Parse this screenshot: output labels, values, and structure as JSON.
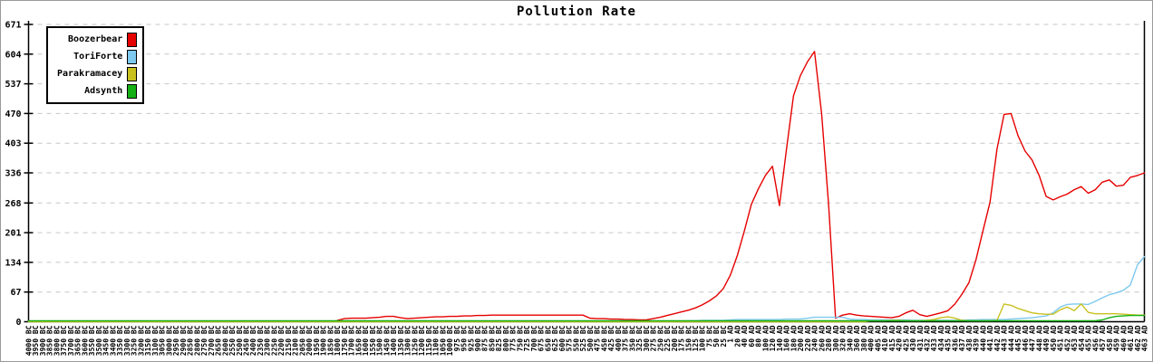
{
  "chart_data": {
    "type": "line",
    "title": "Pollution Rate",
    "xlabel": "",
    "ylabel": "",
    "ylim": [
      0,
      671
    ],
    "y_ticks": [
      0,
      67,
      134,
      201,
      268,
      336,
      403,
      470,
      537,
      604,
      671
    ],
    "grid": "horizontal-dashed",
    "legend_position": "top-left",
    "axis_color": "#000000",
    "grid_color": "#c6c6c6",
    "x_tick_labels": [
      "4000 BC",
      "3950 BC",
      "3900 BC",
      "3850 BC",
      "3800 BC",
      "3750 BC",
      "3700 BC",
      "3650 BC",
      "3600 BC",
      "3550 BC",
      "3500 BC",
      "3450 BC",
      "3400 BC",
      "3350 BC",
      "3300 BC",
      "3250 BC",
      "3200 BC",
      "3150 BC",
      "3100 BC",
      "3050 BC",
      "3000 BC",
      "2950 BC",
      "2900 BC",
      "2850 BC",
      "2800 BC",
      "2750 BC",
      "2700 BC",
      "2650 BC",
      "2600 BC",
      "2550 BC",
      "2500 BC",
      "2450 BC",
      "2400 BC",
      "2350 BC",
      "2300 BC",
      "2250 BC",
      "2200 BC",
      "2150 BC",
      "2100 BC",
      "2050 BC",
      "2000 BC",
      "1950 BC",
      "1900 BC",
      "1850 BC",
      "1800 BC",
      "1750 BC",
      "1700 BC",
      "1650 BC",
      "1600 BC",
      "1550 BC",
      "1500 BC",
      "1450 BC",
      "1400 BC",
      "1350 BC",
      "1300 BC",
      "1250 BC",
      "1200 BC",
      "1150 BC",
      "1100 BC",
      "1050 BC",
      "1000 BC",
      "975 BC",
      "950 BC",
      "925 BC",
      "900 BC",
      "875 BC",
      "850 BC",
      "825 BC",
      "800 BC",
      "775 BC",
      "750 BC",
      "725 BC",
      "700 BC",
      "675 BC",
      "650 BC",
      "625 BC",
      "600 BC",
      "575 BC",
      "550 BC",
      "525 BC",
      "500 BC",
      "475 BC",
      "450 BC",
      "425 BC",
      "400 BC",
      "375 BC",
      "350 BC",
      "325 BC",
      "300 BC",
      "275 BC",
      "250 BC",
      "225 BC",
      "200 BC",
      "175 BC",
      "150 BC",
      "125 BC",
      "100 BC",
      "75 BC",
      "50 BC",
      "25 BC",
      "1 AD",
      "20 AD",
      "40 AD",
      "60 AD",
      "80 AD",
      "100 AD",
      "120 AD",
      "140 AD",
      "160 AD",
      "180 AD",
      "200 AD",
      "220 AD",
      "240 AD",
      "260 AD",
      "280 AD",
      "300 AD",
      "320 AD",
      "340 AD",
      "360 AD",
      "380 AD",
      "400 AD",
      "405 AD",
      "410 AD",
      "415 AD",
      "420 AD",
      "425 AD",
      "430 AD",
      "431 AD",
      "432 AD",
      "433 AD",
      "434 AD",
      "435 AD",
      "436 AD",
      "437 AD",
      "438 AD",
      "439 AD",
      "440 AD",
      "441 AD",
      "442 AD",
      "443 AD",
      "444 AD",
      "445 AD",
      "446 AD",
      "447 AD",
      "448 AD",
      "449 AD",
      "450 AD",
      "451 AD",
      "452 AD",
      "453 AD",
      "454 AD",
      "455 AD",
      "456 AD",
      "457 AD",
      "458 AD",
      "459 AD",
      "460 AD",
      "461 AD",
      "462 AD",
      "463 AD"
    ],
    "series": [
      {
        "name": "Boozerbear",
        "color": "#e60000",
        "values": [
          null,
          null,
          null,
          null,
          null,
          null,
          null,
          null,
          null,
          null,
          null,
          null,
          null,
          null,
          null,
          null,
          null,
          null,
          null,
          null,
          null,
          null,
          null,
          null,
          null,
          null,
          null,
          null,
          null,
          null,
          null,
          null,
          null,
          null,
          null,
          null,
          null,
          null,
          null,
          null,
          null,
          null,
          null,
          null,
          3,
          7,
          8,
          8,
          8,
          9,
          10,
          12,
          12,
          9,
          7,
          8,
          9,
          10,
          11,
          11,
          12,
          12,
          13,
          13,
          14,
          14,
          15,
          15,
          15,
          15,
          15,
          15,
          15,
          15,
          15,
          15,
          15,
          15,
          15,
          15,
          8,
          7,
          7,
          6,
          6,
          5,
          5,
          4,
          4,
          7,
          10,
          14,
          18,
          22,
          26,
          31,
          38,
          47,
          58,
          75,
          105,
          150,
          205,
          265,
          300,
          330,
          351,
          262,
          390,
          510,
          556,
          587,
          610,
          470,
          265,
          8,
          15,
          18,
          15,
          13,
          12,
          11,
          10,
          9,
          12,
          20,
          26,
          16,
          12,
          16,
          20,
          25,
          40,
          62,
          88,
          140,
          205,
          270,
          390,
          468,
          470,
          420,
          385,
          365,
          330,
          283,
          275,
          282,
          288,
          298,
          305,
          290,
          298,
          315,
          320,
          306,
          308,
          326,
          330,
          336
        ]
      },
      {
        "name": "ToriForte",
        "color": "#7dc9ef",
        "values": [
          0,
          0,
          0,
          0,
          0,
          0,
          0,
          0,
          0,
          0,
          0,
          0,
          0,
          0,
          0,
          0,
          0,
          0,
          0,
          0,
          0,
          0,
          0,
          0,
          0,
          0,
          0,
          0,
          0,
          0,
          0,
          0,
          0,
          0,
          0,
          0,
          0,
          0,
          0,
          0,
          0,
          0,
          0,
          0,
          0,
          0,
          0,
          0,
          0,
          0,
          0,
          0,
          0,
          0,
          0,
          0,
          0,
          0,
          0,
          0,
          0,
          0,
          0,
          0,
          0,
          0,
          0,
          0,
          0,
          0,
          0,
          0,
          0,
          0,
          0,
          0,
          0,
          0,
          0,
          0,
          0,
          0,
          0,
          0,
          0,
          0,
          0,
          0,
          0,
          0,
          0,
          0,
          0,
          1,
          2,
          2,
          3,
          3,
          3,
          3,
          4,
          5,
          5,
          5,
          5,
          5,
          5,
          5,
          6,
          6,
          6,
          8,
          10,
          10,
          10,
          10,
          10,
          6,
          5,
          5,
          4,
          4,
          4,
          4,
          4,
          4,
          3,
          3,
          3,
          3,
          3,
          3,
          3,
          3,
          4,
          4,
          5,
          5,
          5,
          5,
          6,
          7,
          8,
          9,
          11,
          13,
          20,
          33,
          39,
          40,
          40,
          39,
          46,
          54,
          61,
          65,
          71,
          83,
          128,
          147
        ]
      },
      {
        "name": "Parakramacey",
        "color": "#c9c11f",
        "values": [
          0,
          0,
          0,
          0,
          0,
          0,
          0,
          0,
          0,
          0,
          0,
          0,
          0,
          0,
          0,
          0,
          0,
          0,
          0,
          0,
          0,
          0,
          0,
          0,
          0,
          0,
          0,
          0,
          0,
          0,
          0,
          0,
          0,
          0,
          0,
          0,
          0,
          0,
          0,
          0,
          0,
          0,
          0,
          0,
          0,
          0,
          0,
          0,
          0,
          0,
          0,
          0,
          0,
          0,
          0,
          0,
          0,
          0,
          0,
          0,
          0,
          0,
          0,
          0,
          0,
          0,
          0,
          0,
          0,
          0,
          0,
          0,
          0,
          0,
          0,
          0,
          0,
          0,
          0,
          0,
          0,
          0,
          0,
          0,
          0,
          0,
          0,
          0,
          0,
          0,
          0,
          0,
          0,
          0,
          0,
          0,
          0,
          0,
          0,
          0,
          0,
          0,
          0,
          0,
          0,
          0,
          0,
          0,
          0,
          0,
          0,
          0,
          0,
          0,
          0,
          0,
          0,
          0,
          0,
          0,
          2,
          2,
          2,
          3,
          3,
          2,
          2,
          2,
          3,
          5,
          9,
          11,
          8,
          3,
          2,
          2,
          2,
          2,
          3,
          40,
          37,
          30,
          25,
          20,
          18,
          17,
          17,
          27,
          33,
          25,
          40,
          21,
          18,
          18,
          18,
          18,
          17,
          16,
          15,
          15
        ]
      },
      {
        "name": "Adsynth",
        "color": "#14b014",
        "values": [
          2,
          2,
          2,
          2,
          2,
          2,
          2,
          2,
          2,
          2,
          2,
          2,
          2,
          2,
          2,
          2,
          2,
          2,
          2,
          2,
          2,
          2,
          2,
          2,
          2,
          2,
          2,
          2,
          2,
          2,
          2,
          2,
          2,
          2,
          2,
          2,
          2,
          2,
          2,
          2,
          2,
          2,
          2,
          2,
          2,
          2,
          2,
          2,
          2,
          2,
          2,
          2,
          2,
          2,
          2,
          2,
          2,
          2,
          2,
          2,
          2,
          2,
          2,
          2,
          2,
          2,
          2,
          2,
          2,
          2,
          2,
          2,
          2,
          2,
          2,
          2,
          2,
          2,
          2,
          2,
          2,
          2,
          2,
          2,
          2,
          2,
          2,
          2,
          2,
          2,
          2,
          2,
          2,
          2,
          2,
          2,
          2,
          2,
          2,
          2,
          2,
          2,
          2,
          2,
          2,
          2,
          2,
          2,
          2,
          2,
          2,
          2,
          2,
          2,
          2,
          2,
          2,
          2,
          2,
          2,
          2,
          2,
          2,
          2,
          2,
          2,
          2,
          2,
          2,
          2,
          2,
          2,
          2,
          2,
          2,
          2,
          2,
          2,
          2,
          2,
          2,
          2,
          2,
          2,
          2,
          2,
          2,
          2,
          2,
          2,
          2,
          2,
          2,
          4,
          9,
          12,
          13,
          14,
          14,
          14
        ]
      }
    ]
  }
}
